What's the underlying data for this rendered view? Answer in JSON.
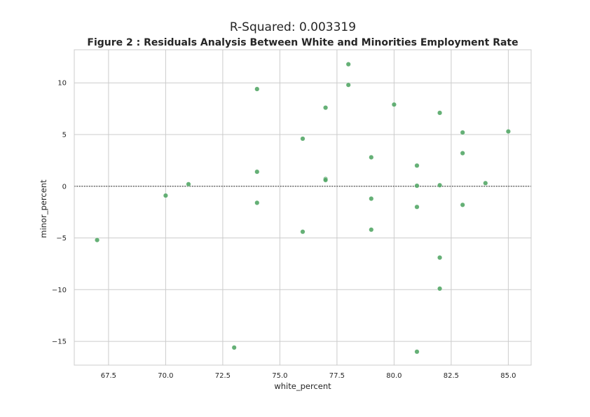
{
  "suptitle": "R-Squared: 0.003319",
  "chart_data": {
    "type": "scatter",
    "title": "Figure 2 : Residuals Analysis Between White and Minorities Employment Rate",
    "xlabel": "white_percent",
    "ylabel": "minor_percent",
    "xlim": [
      66,
      86
    ],
    "ylim": [
      -17.3,
      13.2
    ],
    "xticks": [
      67.5,
      70.0,
      72.5,
      75.0,
      77.5,
      80.0,
      82.5,
      85.0
    ],
    "xtick_labels": [
      "67.5",
      "70.0",
      "72.5",
      "75.0",
      "77.5",
      "80.0",
      "82.5",
      "85.0"
    ],
    "yticks": [
      -15,
      -10,
      -5,
      0,
      5,
      10
    ],
    "ytick_labels": [
      "−15",
      "−10",
      "−5",
      "0",
      "5",
      "10"
    ],
    "grid": true,
    "reference_line": {
      "y": 0,
      "style": "dotted"
    },
    "colors": {
      "points": "#55a868",
      "grid": "#cccccc",
      "reference_line": "#404040"
    },
    "points": [
      {
        "x": 67,
        "y": -5.2
      },
      {
        "x": 70,
        "y": -0.9
      },
      {
        "x": 71,
        "y": 0.2
      },
      {
        "x": 73,
        "y": -15.6
      },
      {
        "x": 74,
        "y": 9.4
      },
      {
        "x": 74,
        "y": 1.4
      },
      {
        "x": 74,
        "y": -1.6
      },
      {
        "x": 76,
        "y": 4.6
      },
      {
        "x": 76,
        "y": -4.4
      },
      {
        "x": 77,
        "y": 7.6
      },
      {
        "x": 77,
        "y": 0.7
      },
      {
        "x": 77,
        "y": 0.6
      },
      {
        "x": 78,
        "y": 11.8
      },
      {
        "x": 78,
        "y": 9.8
      },
      {
        "x": 79,
        "y": 2.8
      },
      {
        "x": 79,
        "y": -1.2
      },
      {
        "x": 79,
        "y": -4.2
      },
      {
        "x": 80,
        "y": 7.9
      },
      {
        "x": 81,
        "y": 2.0
      },
      {
        "x": 81,
        "y": 0.05
      },
      {
        "x": 81,
        "y": -2.0
      },
      {
        "x": 81,
        "y": -16.0
      },
      {
        "x": 82,
        "y": 7.1
      },
      {
        "x": 82,
        "y": 0.1
      },
      {
        "x": 82,
        "y": -6.9
      },
      {
        "x": 82,
        "y": -9.9
      },
      {
        "x": 83,
        "y": 5.2
      },
      {
        "x": 83,
        "y": 3.2
      },
      {
        "x": 83,
        "y": -1.8
      },
      {
        "x": 84,
        "y": 0.3
      },
      {
        "x": 85,
        "y": 5.3
      }
    ]
  }
}
